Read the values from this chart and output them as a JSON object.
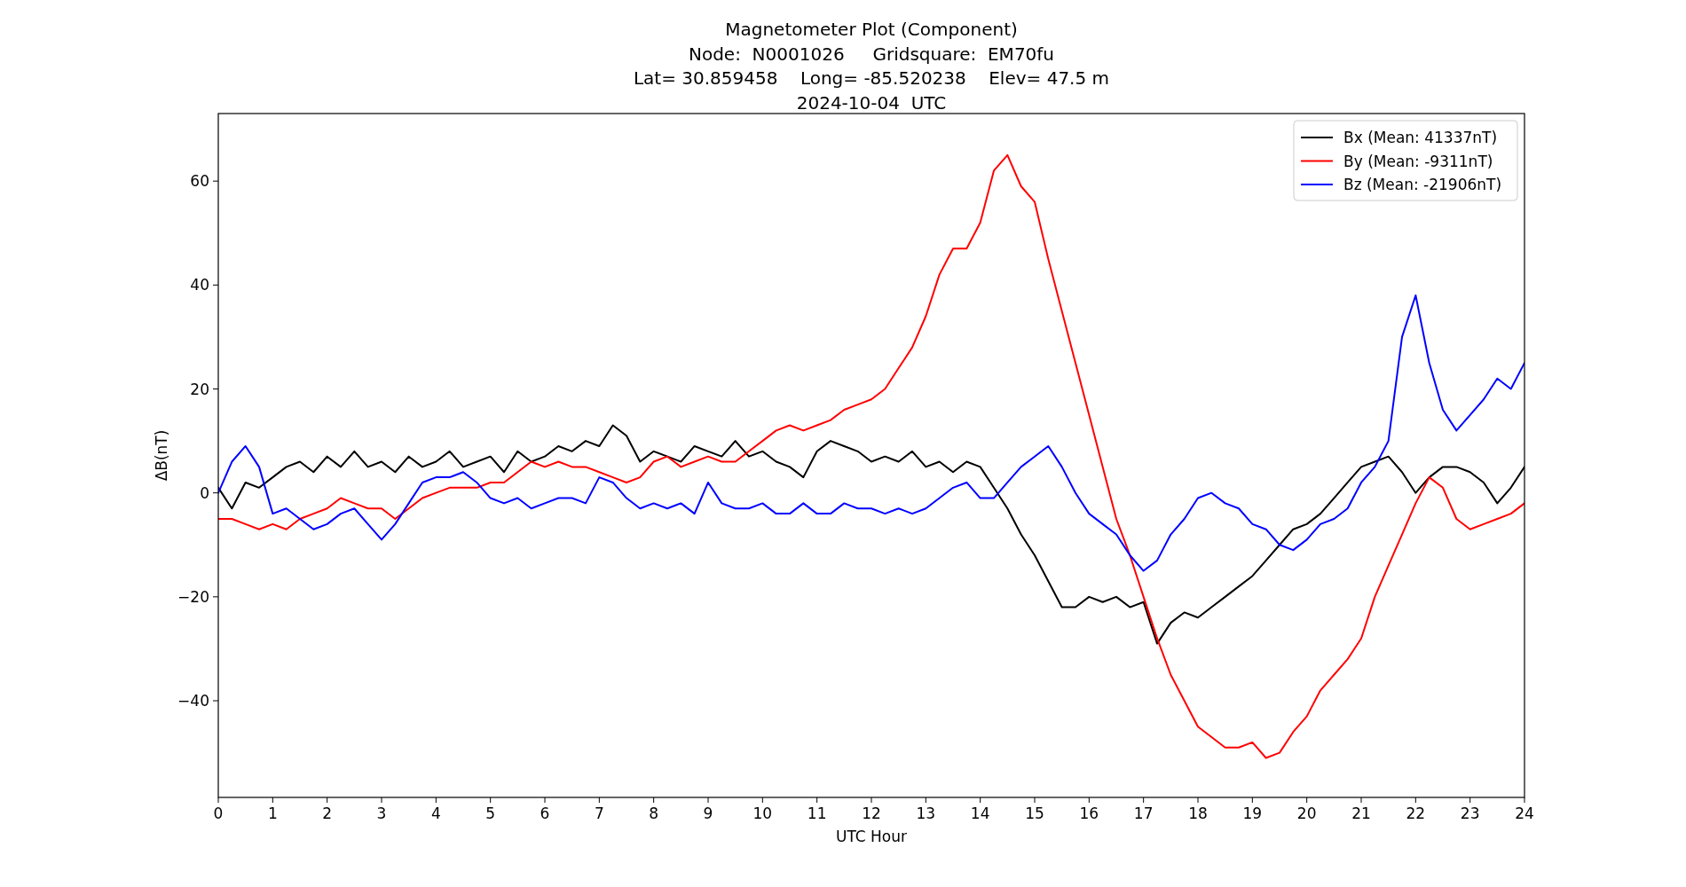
{
  "chart_data": {
    "type": "line",
    "title": "Magnetometer Plot (Component)\nNode:  N0001026     Gridsquare:  EM70fu\nLat= 30.859458    Long= -85.520238    Elev= 47.5 m\n2024-10-04  UTC",
    "xlabel": "UTC Hour",
    "ylabel": "ΔB(nT)",
    "x": [
      0,
      0.25,
      0.5,
      0.75,
      1,
      1.25,
      1.5,
      1.75,
      2,
      2.25,
      2.5,
      2.75,
      3,
      3.25,
      3.5,
      3.75,
      4,
      4.25,
      4.5,
      4.75,
      5,
      5.25,
      5.5,
      5.75,
      6,
      6.25,
      6.5,
      6.75,
      7,
      7.25,
      7.5,
      7.75,
      8,
      8.25,
      8.5,
      8.75,
      9,
      9.25,
      9.5,
      9.75,
      10,
      10.25,
      10.5,
      10.75,
      11,
      11.25,
      11.5,
      11.75,
      12,
      12.25,
      12.5,
      12.75,
      13,
      13.25,
      13.5,
      13.75,
      14,
      14.25,
      14.5,
      14.75,
      15,
      15.25,
      15.5,
      15.75,
      16,
      16.25,
      16.5,
      16.75,
      17,
      17.25,
      17.5,
      17.75,
      18,
      18.25,
      18.5,
      18.75,
      19,
      19.25,
      19.5,
      19.75,
      20,
      20.25,
      20.5,
      20.75,
      21,
      21.25,
      21.5,
      21.75,
      22,
      22.25,
      22.5,
      22.75,
      23,
      23.25,
      23.5,
      23.75,
      24
    ],
    "series": [
      {
        "name": "Bx (Mean: 41337nT)",
        "color": "#000000",
        "values": [
          1,
          -3,
          2,
          1,
          3,
          5,
          6,
          4,
          7,
          5,
          8,
          5,
          6,
          4,
          7,
          5,
          6,
          8,
          5,
          6,
          7,
          4,
          8,
          6,
          7,
          9,
          8,
          10,
          9,
          13,
          11,
          6,
          8,
          7,
          6,
          9,
          8,
          7,
          10,
          7,
          8,
          6,
          5,
          3,
          8,
          10,
          9,
          8,
          6,
          7,
          6,
          8,
          5,
          6,
          4,
          6,
          5,
          1,
          -3,
          -8,
          -12,
          -17,
          -22,
          -22,
          -20,
          -21,
          -20,
          -22,
          -21,
          -29,
          -25,
          -23,
          -24,
          -22,
          -20,
          -18,
          -16,
          -13,
          -10,
          -7,
          -6,
          -4,
          -1,
          2,
          5,
          6,
          7,
          4,
          0,
          3,
          5,
          5,
          4,
          2,
          -2,
          1,
          5
        ]
      },
      {
        "name": "By (Mean: -9311nT)",
        "color": "#ff0000",
        "values": [
          -5,
          -5,
          -6,
          -7,
          -6,
          -7,
          -5,
          -4,
          -3,
          -1,
          -2,
          -3,
          -3,
          -5,
          -3,
          -1,
          0,
          1,
          1,
          1,
          2,
          2,
          4,
          6,
          5,
          6,
          5,
          5,
          4,
          3,
          2,
          3,
          6,
          7,
          5,
          6,
          7,
          6,
          6,
          8,
          10,
          12,
          13,
          12,
          13,
          14,
          16,
          17,
          18,
          20,
          24,
          28,
          34,
          42,
          47,
          47,
          52,
          62,
          65,
          59,
          56,
          45,
          35,
          25,
          15,
          5,
          -5,
          -12,
          -20,
          -28,
          -35,
          -40,
          -45,
          -47,
          -49,
          -49,
          -48,
          -51,
          -50,
          -46,
          -43,
          -38,
          -35,
          -32,
          -28,
          -20,
          -14,
          -8,
          -2,
          3,
          1,
          -5,
          -7,
          -6,
          -5,
          -4,
          -2
        ]
      },
      {
        "name": "Bz (Mean: -21906nT)",
        "color": "#0000ff",
        "values": [
          0,
          6,
          9,
          5,
          -4,
          -3,
          -5,
          -7,
          -6,
          -4,
          -3,
          -6,
          -9,
          -6,
          -2,
          2,
          3,
          3,
          4,
          2,
          -1,
          -2,
          -1,
          -3,
          -2,
          -1,
          -1,
          -2,
          3,
          2,
          -1,
          -3,
          -2,
          -3,
          -2,
          -4,
          2,
          -2,
          -3,
          -3,
          -2,
          -4,
          -4,
          -2,
          -4,
          -4,
          -2,
          -3,
          -3,
          -4,
          -3,
          -4,
          -3,
          -1,
          1,
          2,
          -1,
          -1,
          2,
          5,
          7,
          9,
          5,
          0,
          -4,
          -6,
          -8,
          -12,
          -15,
          -13,
          -8,
          -5,
          -1,
          0,
          -2,
          -3,
          -6,
          -7,
          -10,
          -11,
          -9,
          -6,
          -5,
          -3,
          2,
          5,
          10,
          30,
          38,
          25,
          16,
          12,
          15,
          18,
          22,
          20,
          25
        ]
      }
    ],
    "xlim": [
      0,
      24
    ],
    "xticks": [
      0,
      1,
      2,
      3,
      4,
      5,
      6,
      7,
      8,
      9,
      10,
      11,
      12,
      13,
      14,
      15,
      16,
      17,
      18,
      19,
      20,
      21,
      22,
      23,
      24
    ],
    "ylim": [
      -58.6,
      73
    ],
    "yticks": [
      {
        "value": -40,
        "label": "−40"
      },
      {
        "value": -20,
        "label": "−20"
      },
      0,
      20,
      40,
      60
    ],
    "legend": "top right",
    "grid": false,
    "marker": "none",
    "line_style": "solid"
  }
}
